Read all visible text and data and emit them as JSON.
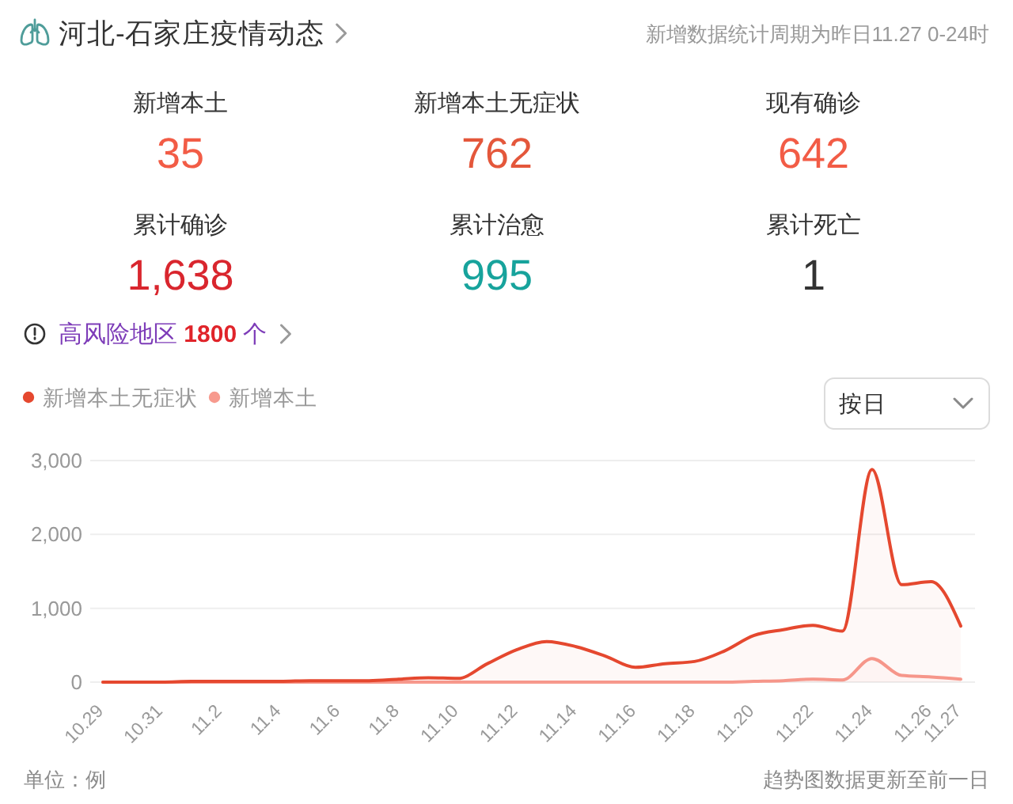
{
  "chart_data": [
    {
      "type": "other",
      "title": "河北-石家庄疫情动态",
      "subtitle": "新增数据统计周期为昨日11.27 0-24时",
      "categories": [
        "新增本土",
        "新增本土无症状",
        "现有确诊",
        "累计确诊",
        "累计治愈",
        "累计死亡"
      ],
      "values": [
        35,
        762,
        642,
        1638,
        995,
        1
      ],
      "value_labels": [
        "35",
        "762",
        "642",
        "1,638",
        "995",
        "1"
      ],
      "colors": [
        "#f25c46",
        "#e4573b",
        "#f25c46",
        "#d9262e",
        "#17a39c",
        "#333333"
      ],
      "annotations": [
        "高风险地区 1800 个"
      ]
    },
    {
      "type": "area",
      "categories": [
        "10.29",
        null,
        "10.31",
        null,
        "11.2",
        null,
        "11.4",
        null,
        "11.6",
        null,
        "11.8",
        null,
        "11.10",
        null,
        "11.12",
        null,
        "11.14",
        null,
        "11.16",
        null,
        "11.18",
        null,
        "11.20",
        null,
        "11.22",
        null,
        "11.24",
        null,
        "11.26",
        "11.27"
      ],
      "series": [
        {
          "name": "新增本土无症状",
          "color": "#e5482f",
          "values": [
            0,
            0,
            0,
            10,
            10,
            10,
            10,
            20,
            20,
            20,
            40,
            60,
            50,
            250,
            440,
            550,
            480,
            350,
            200,
            250,
            280,
            420,
            630,
            710,
            770,
            690,
            2880,
            1320,
            1360,
            760
          ]
        },
        {
          "name": "新增本土",
          "color": "#f79a8e",
          "values": [
            0,
            0,
            0,
            0,
            0,
            0,
            0,
            0,
            0,
            0,
            0,
            0,
            0,
            0,
            0,
            0,
            0,
            0,
            0,
            0,
            0,
            0,
            10,
            20,
            40,
            30,
            320,
            90,
            70,
            40
          ]
        }
      ],
      "ylim": [
        0,
        3000
      ],
      "yticks": [
        0,
        {
          "value": 1000,
          "label": "1,000"
        },
        {
          "value": 2000,
          "label": "2,000"
        },
        {
          "value": 3000,
          "label": "3,000"
        }
      ],
      "grid": "y",
      "legend": "top left",
      "annotations": [
        "按日",
        "单位：例",
        "趋势图数据更新至前一日"
      ]
    }
  ]
}
